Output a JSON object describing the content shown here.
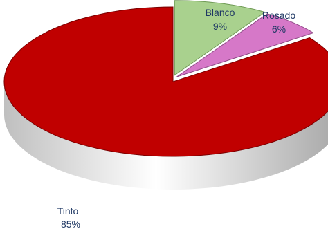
{
  "chart_data": {
    "type": "pie",
    "title": "",
    "legend": "none",
    "slices": [
      {
        "label": "Tinto",
        "value": 85,
        "pct_label": "85%",
        "color": "#c00000",
        "side_color": "#7a0000"
      },
      {
        "label": "Blanco",
        "value": 9,
        "pct_label": "9%",
        "color": "#a9d18e",
        "side_color": "#6f9a55"
      },
      {
        "label": "Rosado",
        "value": 6,
        "pct_label": "6%",
        "color": "#d678c8",
        "side_color": "#8f4a86"
      }
    ],
    "exploded": [
      "Blanco",
      "Rosado"
    ],
    "style": "3d"
  }
}
